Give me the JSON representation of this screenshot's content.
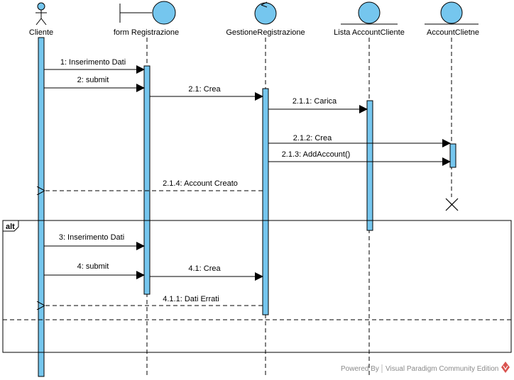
{
  "participants": [
    {
      "name": "Cliente",
      "kind": "actor"
    },
    {
      "name": "form Registrazione",
      "kind": "boundary"
    },
    {
      "name": "GestioneRegistrazione",
      "kind": "control"
    },
    {
      "name": "Lista AccountCliente",
      "kind": "entity"
    },
    {
      "name": "AccountClietne",
      "kind": "entity"
    }
  ],
  "messages": [
    {
      "label": "1: Inserimento Dati",
      "kind": "sync"
    },
    {
      "label": "2: submit",
      "kind": "sync"
    },
    {
      "label": "2.1: Crea",
      "kind": "sync"
    },
    {
      "label": "2.1.1: Carica",
      "kind": "sync"
    },
    {
      "label": "2.1.2: Crea",
      "kind": "sync"
    },
    {
      "label": "2.1.3: AddAccount()",
      "kind": "sync"
    },
    {
      "label": "2.1.4: Account Creato",
      "kind": "return"
    },
    {
      "label": "3: Inserimento Dati",
      "kind": "sync"
    },
    {
      "label": "4: submit",
      "kind": "sync"
    },
    {
      "label": "4.1: Crea",
      "kind": "sync"
    },
    {
      "label": "4.1.1: Dati Errati",
      "kind": "return"
    }
  ],
  "fragment": {
    "operator": "alt"
  },
  "watermark": {
    "prefix": "Powered By",
    "product": "Visual Paradigm Community Edition"
  },
  "colors": {
    "activation": "#75c6ee",
    "head": "#75c6ee",
    "line": "#000000",
    "watermark_logo": "#d9534f"
  }
}
